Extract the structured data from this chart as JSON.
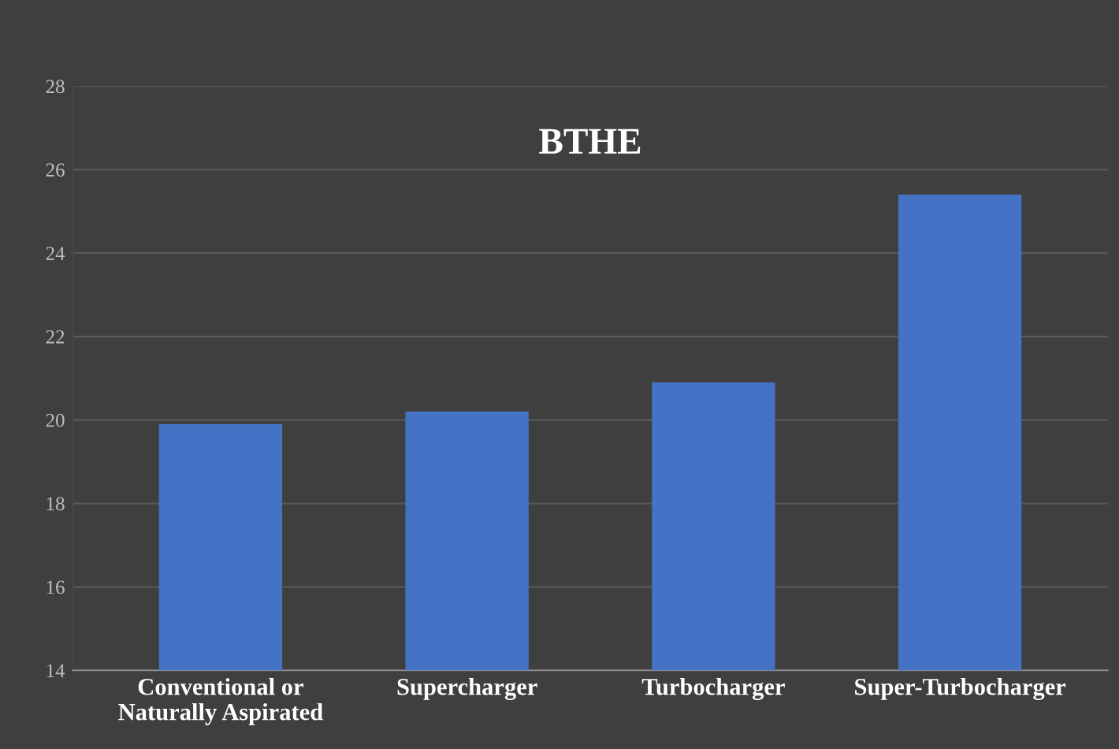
{
  "chart_data": {
    "type": "bar",
    "title": "BTHE",
    "categories": [
      "Conventional or\nNaturally Aspirated",
      "Supercharger",
      "Turbocharger",
      "Super-Turbocharger"
    ],
    "values": [
      19.9,
      20.2,
      20.9,
      25.4
    ],
    "color": "#4472c4",
    "ylim": [
      14,
      28
    ],
    "yticks": [
      14,
      16,
      18,
      20,
      22,
      24,
      26,
      28
    ],
    "grid": "y"
  }
}
